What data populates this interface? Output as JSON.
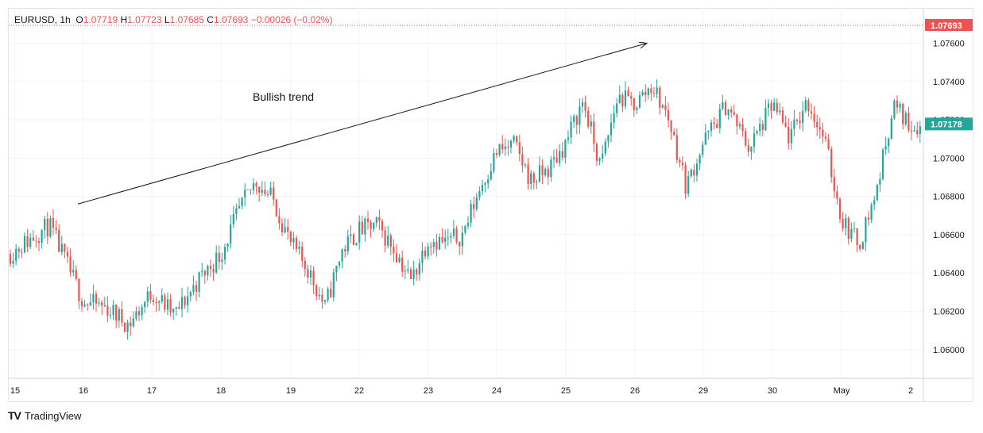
{
  "legend": {
    "symbol": "EURUSD",
    "sep": ",",
    "interval": "1h",
    "open_label": "O",
    "open": "1.07719",
    "high_label": "H",
    "high": "1.07723",
    "low_label": "L",
    "low": "1.07685",
    "close_label": "C",
    "close": "1.07693",
    "change": "−0.00026 (−0.02%)"
  },
  "annotation": "Bullish trend",
  "badges": {
    "last": "1.07693",
    "current": "1.07178",
    "last_color": "#ef5350",
    "current_color": "#26a69a"
  },
  "colors": {
    "up": "#26a69a",
    "down": "#ef5350",
    "grid": "#f0f3fa"
  },
  "footer": {
    "logo": "TV",
    "brand": "TradingView"
  },
  "chart_data": {
    "type": "candlestick",
    "symbol": "EURUSD",
    "interval": "1h",
    "ylim": [
      1.0585,
      1.0778
    ],
    "y_ticks": [
      "1.07600",
      "1.07400",
      "1.07200",
      "1.07000",
      "1.06800",
      "1.06600",
      "1.06400",
      "1.06200",
      "1.06000"
    ],
    "x_ticks": [
      "15",
      "16",
      "17",
      "18",
      "19",
      "22",
      "23",
      "24",
      "25",
      "26",
      "29",
      "30",
      "May",
      "2"
    ],
    "last_price_line": 1.07693,
    "trend_line": {
      "from": [
        1.0676,
        "16"
      ],
      "to": [
        1.076,
        "26"
      ],
      "label": "Bullish trend"
    },
    "close_path": [
      [
        "15",
        1.065
      ],
      [
        "15",
        1.0665
      ],
      [
        "16",
        1.0625
      ],
      [
        "16",
        1.0622
      ],
      [
        "16",
        1.0613
      ],
      [
        "17",
        1.063
      ],
      [
        "17",
        1.0618
      ],
      [
        "17",
        1.0636
      ],
      [
        "18",
        1.065
      ],
      [
        "18",
        1.0672
      ],
      [
        "18",
        1.0688
      ],
      [
        "18",
        1.0678
      ],
      [
        "19",
        1.0655
      ],
      [
        "19",
        1.0642
      ],
      [
        "19",
        1.0622
      ],
      [
        "19",
        1.0652
      ],
      [
        "22",
        1.0662
      ],
      [
        "22",
        1.0665
      ],
      [
        "22",
        1.0653
      ],
      [
        "22",
        1.0636
      ],
      [
        "23",
        1.0658
      ],
      [
        "23",
        1.0656
      ],
      [
        "23",
        1.066
      ],
      [
        "23",
        1.0684
      ],
      [
        "24",
        1.0703
      ],
      [
        "24",
        1.0707
      ],
      [
        "24",
        1.0688
      ],
      [
        "24",
        1.0694
      ],
      [
        "25",
        1.0708
      ],
      [
        "25",
        1.073
      ],
      [
        "25",
        1.0695
      ],
      [
        "25",
        1.0732
      ],
      [
        "26",
        1.0728
      ],
      [
        "26",
        1.0738
      ],
      [
        "26",
        1.072
      ],
      [
        "26",
        1.0685
      ],
      [
        "29",
        1.0708
      ],
      [
        "29",
        1.0728
      ],
      [
        "29",
        1.0705
      ],
      [
        "30",
        1.0728
      ],
      [
        "30",
        1.071
      ],
      [
        "30",
        1.073
      ],
      [
        "30",
        1.071
      ],
      [
        "May",
        1.0668
      ],
      [
        "May",
        1.0655
      ],
      [
        "May",
        1.0682
      ],
      [
        "May",
        1.0728
      ],
      [
        "2",
        1.0717
      ]
    ]
  }
}
